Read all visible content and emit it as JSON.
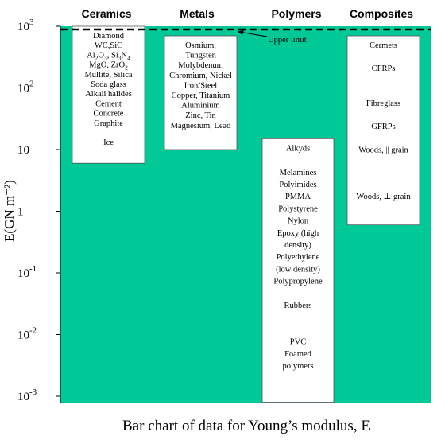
{
  "chart_data": {
    "type": "bar",
    "title": "Bar chart of data for Young’s modulus, E",
    "ylabel": "E(GN m⁻²)",
    "yscale": "log",
    "ylim": [
      0.001,
      1000
    ],
    "yticks": [
      {
        "value": 1000,
        "base": "10",
        "exp": "3"
      },
      {
        "value": 100,
        "base": "10",
        "exp": "2"
      },
      {
        "value": 10,
        "base": "10",
        "exp": ""
      },
      {
        "value": 1,
        "base": "1",
        "exp": ""
      },
      {
        "value": 0.1,
        "base": "10",
        "exp": "-1"
      },
      {
        "value": 0.01,
        "base": "10",
        "exp": "-2"
      },
      {
        "value": 0.001,
        "base": "10",
        "exp": "-3"
      }
    ],
    "upper_limit": {
      "value": 900,
      "label": "Upper limit"
    },
    "background_color": "#00c896",
    "categories": [
      "Ceramics",
      "Metals",
      "Polymers",
      "Composites"
    ],
    "bars": [
      {
        "category": "Ceramics",
        "range": [
          6,
          1000
        ],
        "materials": [
          [
            {
              "t": "Diamond"
            }
          ],
          [
            {
              "t": "WC,SiC"
            }
          ],
          [
            {
              "t": "Al"
            },
            {
              "t": "2",
              "s": "sub"
            },
            {
              "t": "O"
            },
            {
              "t": "3",
              "s": "sub"
            },
            {
              "t": ",  Si"
            },
            {
              "t": "3",
              "s": "sub"
            },
            {
              "t": "N"
            },
            {
              "t": "4",
              "s": "sub"
            }
          ],
          [
            {
              "t": "MgO, ZrO"
            },
            {
              "t": "2",
              "s": "sub"
            }
          ],
          [
            {
              "t": "Mullite, Silica"
            }
          ],
          [
            {
              "t": "Soda glass"
            }
          ],
          [
            {
              "t": "Alkali halides"
            }
          ],
          [
            {
              "t": "Cement"
            }
          ],
          [
            {
              "t": "Concrete"
            }
          ],
          [
            {
              "t": "Graphite"
            }
          ],
          [],
          [
            {
              "t": "Ice"
            }
          ]
        ]
      },
      {
        "category": "Metals",
        "range": [
          10,
          700
        ],
        "materials": [
          [
            {
              "t": "Osmium,"
            }
          ],
          [
            {
              "t": "Tungsten"
            }
          ],
          [
            {
              "t": "Molybdenum"
            }
          ],
          [
            {
              "t": "Chromium, Nickel"
            }
          ],
          [
            {
              "t": "Iron/Steel"
            }
          ],
          [
            {
              "t": "Copper, Titanium"
            }
          ],
          [
            {
              "t": "Aluminium"
            }
          ],
          [
            {
              "t": "Zinc, Tin"
            }
          ],
          [
            {
              "t": "Magnesium, Lead"
            }
          ]
        ]
      },
      {
        "category": "Polymers",
        "range": [
          0.0008,
          15
        ],
        "materials": [
          [
            {
              "t": "Alkyds"
            }
          ],
          [],
          [
            {
              "t": "Melamines"
            }
          ],
          [
            {
              "t": "Polyimides"
            }
          ],
          [
            {
              "t": "PMMA"
            }
          ],
          [
            {
              "t": "Polystyrene"
            }
          ],
          [
            {
              "t": "Nylon"
            }
          ],
          [
            {
              "t": "Epoxy (high"
            }
          ],
          [
            {
              "t": "density)"
            }
          ],
          [
            {
              "t": "Polyethylene"
            }
          ],
          [
            {
              "t": "(low density)"
            }
          ],
          [
            {
              "t": "Polypropylene"
            }
          ],
          [],
          [
            {
              "t": "Rubbers"
            }
          ],
          [],
          [],
          [
            {
              "t": "PVC"
            }
          ],
          [
            {
              "t": "Foamed"
            }
          ],
          [
            {
              "t": "polymers"
            }
          ]
        ]
      },
      {
        "category": "Composites",
        "range": [
          0.6,
          700
        ],
        "materials": [
          [
            {
              "t": "Cermets"
            }
          ],
          [],
          [
            {
              "t": "CFRPs"
            }
          ],
          [],
          [],
          [
            {
              "t": "Fibreglass"
            }
          ],
          [],
          [
            {
              "t": "GFRPs"
            }
          ],
          [],
          [
            {
              "t": "Woods, || grain"
            }
          ],
          [],
          [],
          [],
          [
            {
              "t": "Woods, ⊥ grain"
            }
          ]
        ]
      }
    ]
  }
}
